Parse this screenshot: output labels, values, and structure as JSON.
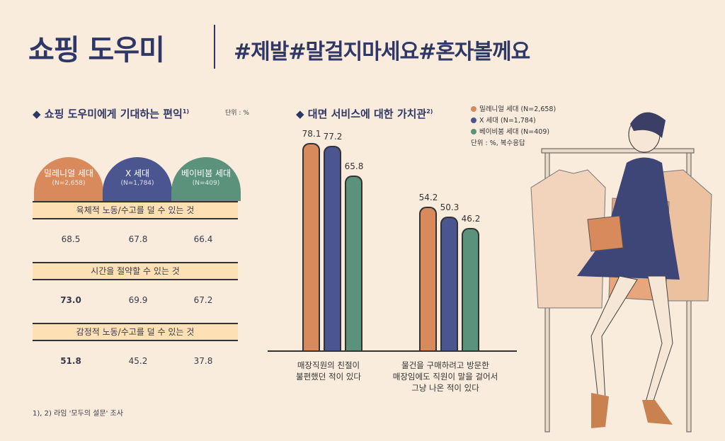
{
  "header": {
    "title": "쇼핑 도우미",
    "hashtags": "#제발#말걸지마세요#혼자볼께요"
  },
  "left": {
    "title": "쇼핑 도우미에게 기대하는 편익",
    "footnote_mark": "1)",
    "unit": "단위 : %",
    "groups": [
      {
        "name": "밀레니얼 세대",
        "n": "(N=2,658)",
        "color": "#d98a5c"
      },
      {
        "name": "X 세대",
        "n": "(N=1,784)",
        "color": "#4b5690"
      },
      {
        "name": "베이비붐 세대",
        "n": "(N=409)",
        "color": "#5b927b"
      }
    ],
    "rows": [
      {
        "label": "육체적 노동/수고를 덜 수 있는 것",
        "values": [
          "68.5",
          "67.8",
          "66.4"
        ]
      },
      {
        "label": "시간을 절약할 수 있는 것",
        "values": [
          "73.0",
          "69.9",
          "67.2"
        ]
      },
      {
        "label": "감정적 노동/수고를 덜 수 있는 것",
        "values": [
          "51.8",
          "45.2",
          "37.8"
        ]
      }
    ]
  },
  "footnote": "1), 2) 라임 '모두의 설문' 조사",
  "chart_data": {
    "type": "bar",
    "title": "대면 서비스에 대한 가치관",
    "footnote_mark": "2)",
    "unit": "단위 : %, 복수응답",
    "categories": [
      "매장직원의 친절이\n불편했던 적이 있다",
      "물건을 구매하려고 방문한\n매장임에도 직원이 말을 걸어서\n그냥 나온 적이 있다"
    ],
    "series": [
      {
        "name": "밀레니얼 세대 (N=2,658)",
        "color": "#d98a5c",
        "values": [
          78.1,
          54.2
        ]
      },
      {
        "name": "X 세대 (N=1,784)",
        "color": "#4b5690",
        "values": [
          77.2,
          50.3
        ]
      },
      {
        "name": "베이비붐 세대 (N=409)",
        "color": "#5b927b",
        "values": [
          65.8,
          46.2
        ]
      }
    ],
    "ylim": [
      0,
      80
    ]
  }
}
